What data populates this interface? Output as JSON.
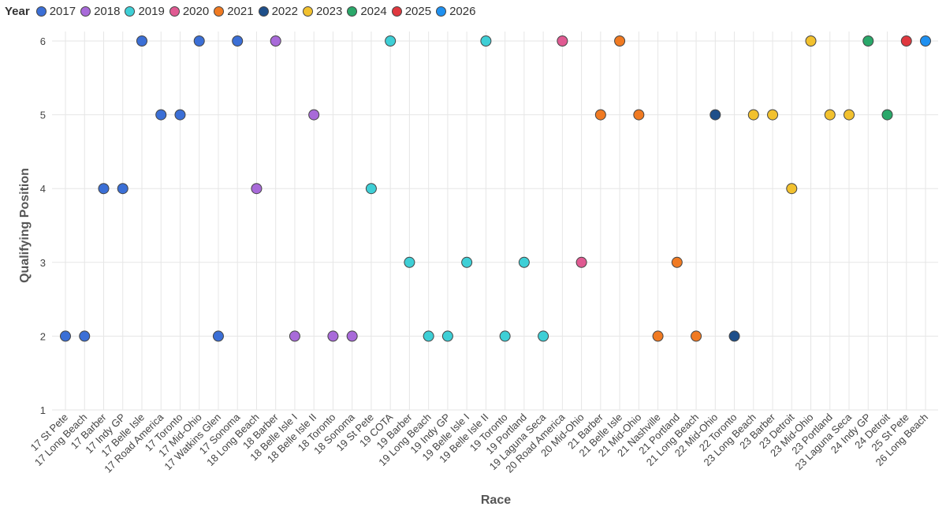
{
  "chart_data": {
    "type": "scatter",
    "xlabel": "Race",
    "ylabel": "Qualifying Position",
    "ylim": [
      1,
      6
    ],
    "yticks": [
      1,
      2,
      3,
      4,
      5,
      6
    ],
    "grid": true,
    "legend": {
      "title": "Year",
      "placement": "top-left",
      "entries": [
        {
          "label": "2017",
          "color": "#3b6fd6"
        },
        {
          "label": "2018",
          "color": "#a86ad9"
        },
        {
          "label": "2019",
          "color": "#3ecfd6"
        },
        {
          "label": "2020",
          "color": "#e05a92"
        },
        {
          "label": "2021",
          "color": "#f07a22"
        },
        {
          "label": "2022",
          "color": "#1e4f8a"
        },
        {
          "label": "2023",
          "color": "#f2c12e"
        },
        {
          "label": "2024",
          "color": "#2aa86a"
        },
        {
          "label": "2025",
          "color": "#e0383f"
        },
        {
          "label": "2026",
          "color": "#1e90f0"
        }
      ]
    },
    "categories": [
      "17 St Pete",
      "17 Long Beach",
      "17 Barber",
      "17 Indy GP",
      "17 Belle Isle",
      "17 Road America",
      "17 Toronto",
      "17 Mid-Ohio",
      "17 Watkins Glen",
      "17 Sonoma",
      "18 Long Beach",
      "18 Barber",
      "18 Belle Isle I",
      "18 Belle Isle II",
      "18 Toronto",
      "18 Sonoma",
      "19 St Pete",
      "19 COTA",
      "19 Barber",
      "19 Long Beach",
      "19 Indy GP",
      "19 Belle Isle I",
      "19 Belle Isle II",
      "19 Toronto",
      "19 Portland",
      "19 Laguna Seca",
      "20 Road America",
      "20 Mid-Ohio",
      "21 Barber",
      "21 Belle Isle",
      "21 Mid-Ohio",
      "21 Nashville",
      "21 Portland",
      "21 Long Beach",
      "22 Mid-Ohio",
      "22 Toronto",
      "23 Long Beach",
      "23 Barber",
      "23 Detroit",
      "23 Mid-Ohio",
      "23 Portland",
      "23 Laguna Seca",
      "24 Indy GP",
      "24 Detroit",
      "25 St Pete",
      "26 Long Beach"
    ],
    "points": [
      {
        "race": "17 St Pete",
        "position": 2,
        "year": "2017"
      },
      {
        "race": "17 Long Beach",
        "position": 2,
        "year": "2017"
      },
      {
        "race": "17 Barber",
        "position": 4,
        "year": "2017"
      },
      {
        "race": "17 Indy GP",
        "position": 4,
        "year": "2017"
      },
      {
        "race": "17 Belle Isle",
        "position": 6,
        "year": "2017"
      },
      {
        "race": "17 Road America",
        "position": 5,
        "year": "2017"
      },
      {
        "race": "17 Toronto",
        "position": 5,
        "year": "2017"
      },
      {
        "race": "17 Mid-Ohio",
        "position": 6,
        "year": "2017"
      },
      {
        "race": "17 Watkins Glen",
        "position": 2,
        "year": "2017"
      },
      {
        "race": "17 Sonoma",
        "position": 6,
        "year": "2017"
      },
      {
        "race": "18 Long Beach",
        "position": 4,
        "year": "2018"
      },
      {
        "race": "18 Barber",
        "position": 6,
        "year": "2018"
      },
      {
        "race": "18 Belle Isle I",
        "position": 2,
        "year": "2018"
      },
      {
        "race": "18 Belle Isle II",
        "position": 5,
        "year": "2018"
      },
      {
        "race": "18 Toronto",
        "position": 2,
        "year": "2018"
      },
      {
        "race": "18 Sonoma",
        "position": 2,
        "year": "2018"
      },
      {
        "race": "19 St Pete",
        "position": 4,
        "year": "2019"
      },
      {
        "race": "19 COTA",
        "position": 6,
        "year": "2019"
      },
      {
        "race": "19 Barber",
        "position": 3,
        "year": "2019"
      },
      {
        "race": "19 Long Beach",
        "position": 2,
        "year": "2019"
      },
      {
        "race": "19 Indy GP",
        "position": 2,
        "year": "2019"
      },
      {
        "race": "19 Belle Isle I",
        "position": 3,
        "year": "2019"
      },
      {
        "race": "19 Belle Isle II",
        "position": 6,
        "year": "2019"
      },
      {
        "race": "19 Toronto",
        "position": 2,
        "year": "2019"
      },
      {
        "race": "19 Portland",
        "position": 3,
        "year": "2019"
      },
      {
        "race": "19 Laguna Seca",
        "position": 2,
        "year": "2019"
      },
      {
        "race": "20 Road America",
        "position": 6,
        "year": "2020"
      },
      {
        "race": "20 Mid-Ohio",
        "position": 3,
        "year": "2020"
      },
      {
        "race": "21 Barber",
        "position": 5,
        "year": "2021"
      },
      {
        "race": "21 Belle Isle",
        "position": 6,
        "year": "2021"
      },
      {
        "race": "21 Mid-Ohio",
        "position": 5,
        "year": "2021"
      },
      {
        "race": "21 Nashville",
        "position": 2,
        "year": "2021"
      },
      {
        "race": "21 Portland",
        "position": 3,
        "year": "2021"
      },
      {
        "race": "21 Long Beach",
        "position": 2,
        "year": "2021"
      },
      {
        "race": "22 Mid-Ohio",
        "position": 5,
        "year": "2022"
      },
      {
        "race": "22 Toronto",
        "position": 2,
        "year": "2022"
      },
      {
        "race": "23 Long Beach",
        "position": 5,
        "year": "2023"
      },
      {
        "race": "23 Barber",
        "position": 5,
        "year": "2023"
      },
      {
        "race": "23 Detroit",
        "position": 4,
        "year": "2023"
      },
      {
        "race": "23 Mid-Ohio",
        "position": 6,
        "year": "2023"
      },
      {
        "race": "23 Portland",
        "position": 5,
        "year": "2023"
      },
      {
        "race": "23 Laguna Seca",
        "position": 5,
        "year": "2023"
      },
      {
        "race": "24 Indy GP",
        "position": 6,
        "year": "2024"
      },
      {
        "race": "24 Detroit",
        "position": 5,
        "year": "2024"
      },
      {
        "race": "25 St Pete",
        "position": 6,
        "year": "2025"
      },
      {
        "race": "26 Long Beach",
        "position": 6,
        "year": "2026"
      }
    ]
  }
}
